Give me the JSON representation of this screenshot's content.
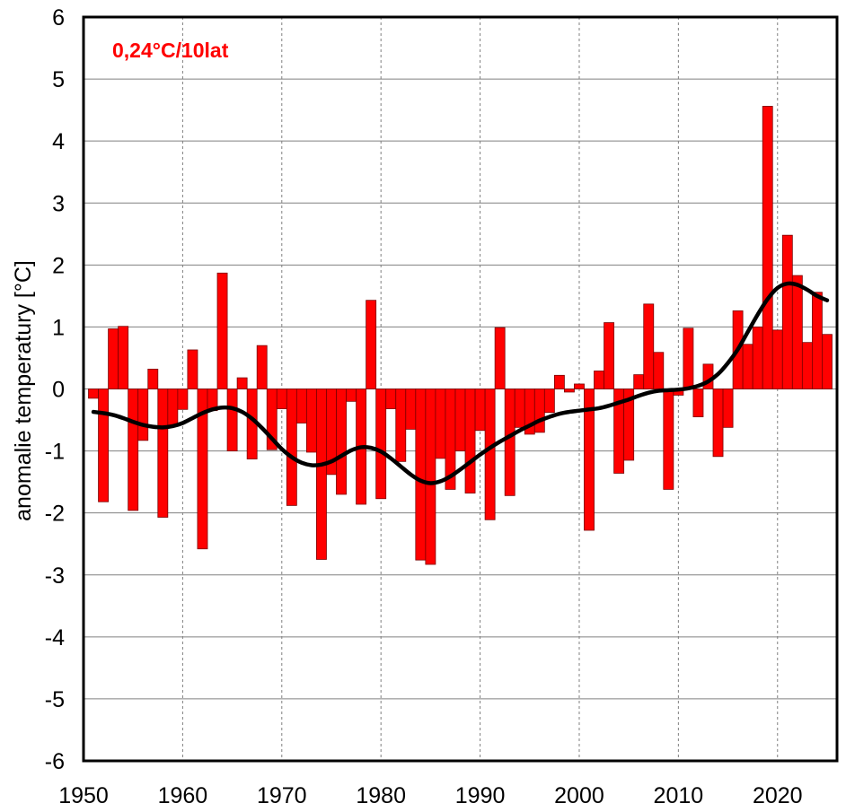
{
  "chart_data": {
    "type": "bar",
    "title": "",
    "xlabel": "",
    "ylabel": "anomalie temperatury [°C]",
    "annotation": "0,24°C/10lat",
    "xlim": [
      1950,
      2026
    ],
    "ylim": [
      -6,
      6
    ],
    "x_ticks": [
      1950,
      1960,
      1970,
      1980,
      1990,
      2000,
      2010,
      2020
    ],
    "y_ticks": [
      -6,
      -5,
      -4,
      -3,
      -2,
      -1,
      0,
      1,
      2,
      3,
      4,
      5,
      6
    ],
    "grid": true,
    "colors": {
      "bar_fill": "#ff0000",
      "bar_stroke": "#7a0000",
      "trend": "#000000",
      "annotation": "#ff0000",
      "grid": "#808080"
    },
    "series": [
      {
        "name": "anomalie",
        "type": "bar",
        "x": [
          1951,
          1952,
          1953,
          1954,
          1955,
          1956,
          1957,
          1958,
          1959,
          1960,
          1961,
          1962,
          1963,
          1964,
          1965,
          1966,
          1967,
          1968,
          1969,
          1970,
          1971,
          1972,
          1973,
          1974,
          1975,
          1976,
          1977,
          1978,
          1979,
          1980,
          1981,
          1982,
          1983,
          1984,
          1985,
          1986,
          1987,
          1988,
          1989,
          1990,
          1991,
          1992,
          1993,
          1994,
          1995,
          1996,
          1997,
          1998,
          1999,
          2000,
          2001,
          2002,
          2003,
          2004,
          2005,
          2006,
          2007,
          2008,
          2009,
          2010,
          2011,
          2012,
          2013,
          2014,
          2015,
          2016,
          2017,
          2018,
          2019,
          2020,
          2021,
          2022,
          2023,
          2024,
          2025
        ],
        "values": [
          -0.15,
          -1.82,
          0.97,
          1.01,
          -1.96,
          -0.83,
          0.32,
          -2.07,
          -0.6,
          -0.33,
          0.63,
          -2.58,
          -0.35,
          1.87,
          -1.0,
          0.18,
          -1.13,
          0.7,
          -0.98,
          -0.32,
          -1.88,
          -0.55,
          -1.02,
          -2.75,
          -1.38,
          -1.7,
          -0.2,
          -1.86,
          1.43,
          -1.77,
          -0.32,
          -1.17,
          -0.65,
          -2.76,
          -2.83,
          -1.12,
          -1.62,
          -1.0,
          -1.68,
          -0.67,
          -2.11,
          0.99,
          -1.72,
          -0.62,
          -0.73,
          -0.7,
          -0.38,
          0.22,
          -0.05,
          0.08,
          -2.28,
          0.29,
          1.07,
          -1.36,
          -1.15,
          0.23,
          1.37,
          0.59,
          -1.62,
          -0.1,
          0.98,
          -0.45,
          0.4,
          -1.09,
          -0.62,
          1.26,
          0.72,
          1.0,
          4.56,
          0.95,
          2.48,
          1.83,
          0.75,
          1.56,
          0.88
        ]
      },
      {
        "name": "trend",
        "type": "line",
        "x": [
          1951,
          1952,
          1953,
          1954,
          1955,
          1956,
          1957,
          1958,
          1959,
          1960,
          1961,
          1962,
          1963,
          1964,
          1965,
          1966,
          1967,
          1968,
          1969,
          1970,
          1971,
          1972,
          1973,
          1974,
          1975,
          1976,
          1977,
          1978,
          1979,
          1980,
          1981,
          1982,
          1983,
          1984,
          1985,
          1986,
          1987,
          1988,
          1989,
          1990,
          1991,
          1992,
          1993,
          1994,
          1995,
          1996,
          1997,
          1998,
          1999,
          2000,
          2001,
          2002,
          2003,
          2004,
          2005,
          2006,
          2007,
          2008,
          2009,
          2010,
          2011,
          2012,
          2013,
          2014,
          2015,
          2016,
          2017,
          2018,
          2019,
          2020,
          2021,
          2022,
          2023,
          2024,
          2025
        ],
        "values": [
          -0.37,
          -0.39,
          -0.42,
          -0.47,
          -0.53,
          -0.58,
          -0.61,
          -0.62,
          -0.6,
          -0.55,
          -0.47,
          -0.39,
          -0.33,
          -0.3,
          -0.31,
          -0.37,
          -0.48,
          -0.63,
          -0.8,
          -0.97,
          -1.1,
          -1.19,
          -1.23,
          -1.22,
          -1.17,
          -1.08,
          -0.99,
          -0.94,
          -0.95,
          -1.01,
          -1.12,
          -1.25,
          -1.38,
          -1.48,
          -1.52,
          -1.49,
          -1.41,
          -1.3,
          -1.18,
          -1.06,
          -0.95,
          -0.85,
          -0.76,
          -0.67,
          -0.59,
          -0.51,
          -0.45,
          -0.4,
          -0.37,
          -0.35,
          -0.33,
          -0.31,
          -0.27,
          -0.22,
          -0.17,
          -0.11,
          -0.06,
          -0.03,
          -0.02,
          -0.01,
          0.01,
          0.05,
          0.12,
          0.24,
          0.42,
          0.64,
          0.92,
          1.2,
          1.45,
          1.63,
          1.7,
          1.68,
          1.6,
          1.5,
          1.43
        ]
      }
    ]
  }
}
